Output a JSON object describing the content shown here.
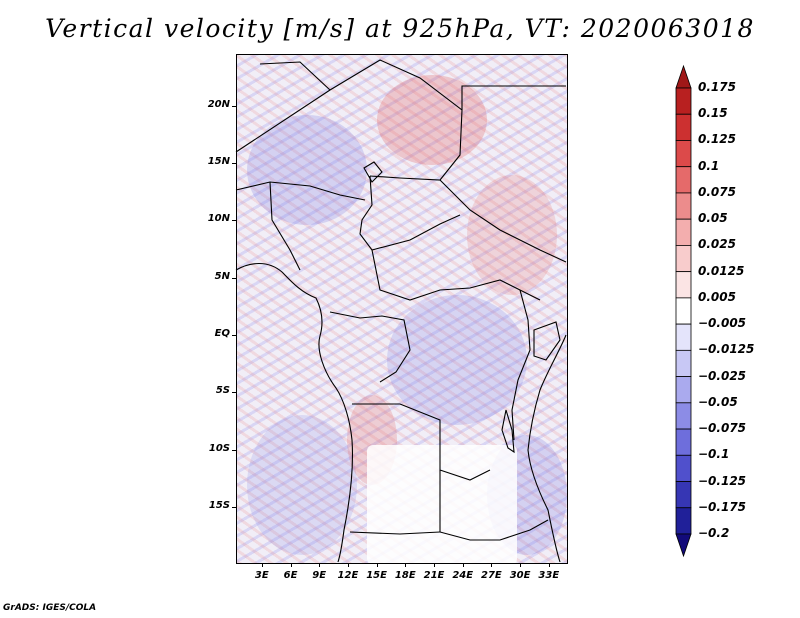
{
  "title": "Vertical velocity [m/s] at 925hPa, VT: 2020063018",
  "credit": "GrADS: IGES/COLA",
  "map": {
    "variable": "vertical velocity",
    "level": "925hPa",
    "valid_time": "2020063018",
    "lat_labels": [
      "20N",
      "15N",
      "10N",
      "5N",
      "EQ",
      "5S",
      "10S",
      "15S"
    ],
    "lat_values": [
      20,
      15,
      10,
      5,
      0,
      -5,
      -10,
      -15
    ],
    "lon_labels": [
      "3E",
      "6E",
      "9E",
      "12E",
      "15E",
      "18E",
      "21E",
      "24E",
      "27E",
      "30E",
      "33E"
    ],
    "lon_values": [
      3,
      6,
      9,
      12,
      15,
      18,
      21,
      24,
      27,
      30,
      33
    ],
    "lon_range": [
      0.3,
      34.8
    ],
    "lat_range": [
      -19.8,
      24.5
    ],
    "border_color": "#000000"
  },
  "colorbar": {
    "labels": [
      "0.175",
      "0.15",
      "0.125",
      "0.1",
      "0.075",
      "0.05",
      "0.025",
      "0.0125",
      "0.005",
      "−0.005",
      "−0.0125",
      "−0.025",
      "−0.05",
      "−0.075",
      "−0.1",
      "−0.125",
      "−0.175",
      "−0.2"
    ],
    "colors": [
      "#a01818",
      "#b82020",
      "#cc3030",
      "#dc4a4a",
      "#e56a6a",
      "#ec8c8c",
      "#f3aeae",
      "#f8cccc",
      "#fbe4e4",
      "#ffffff",
      "#e4e4fb",
      "#c8c8f5",
      "#aaaaee",
      "#8c8ce6",
      "#6e6edc",
      "#5050cc",
      "#3636b4",
      "#202099",
      "#120a7a"
    ]
  }
}
